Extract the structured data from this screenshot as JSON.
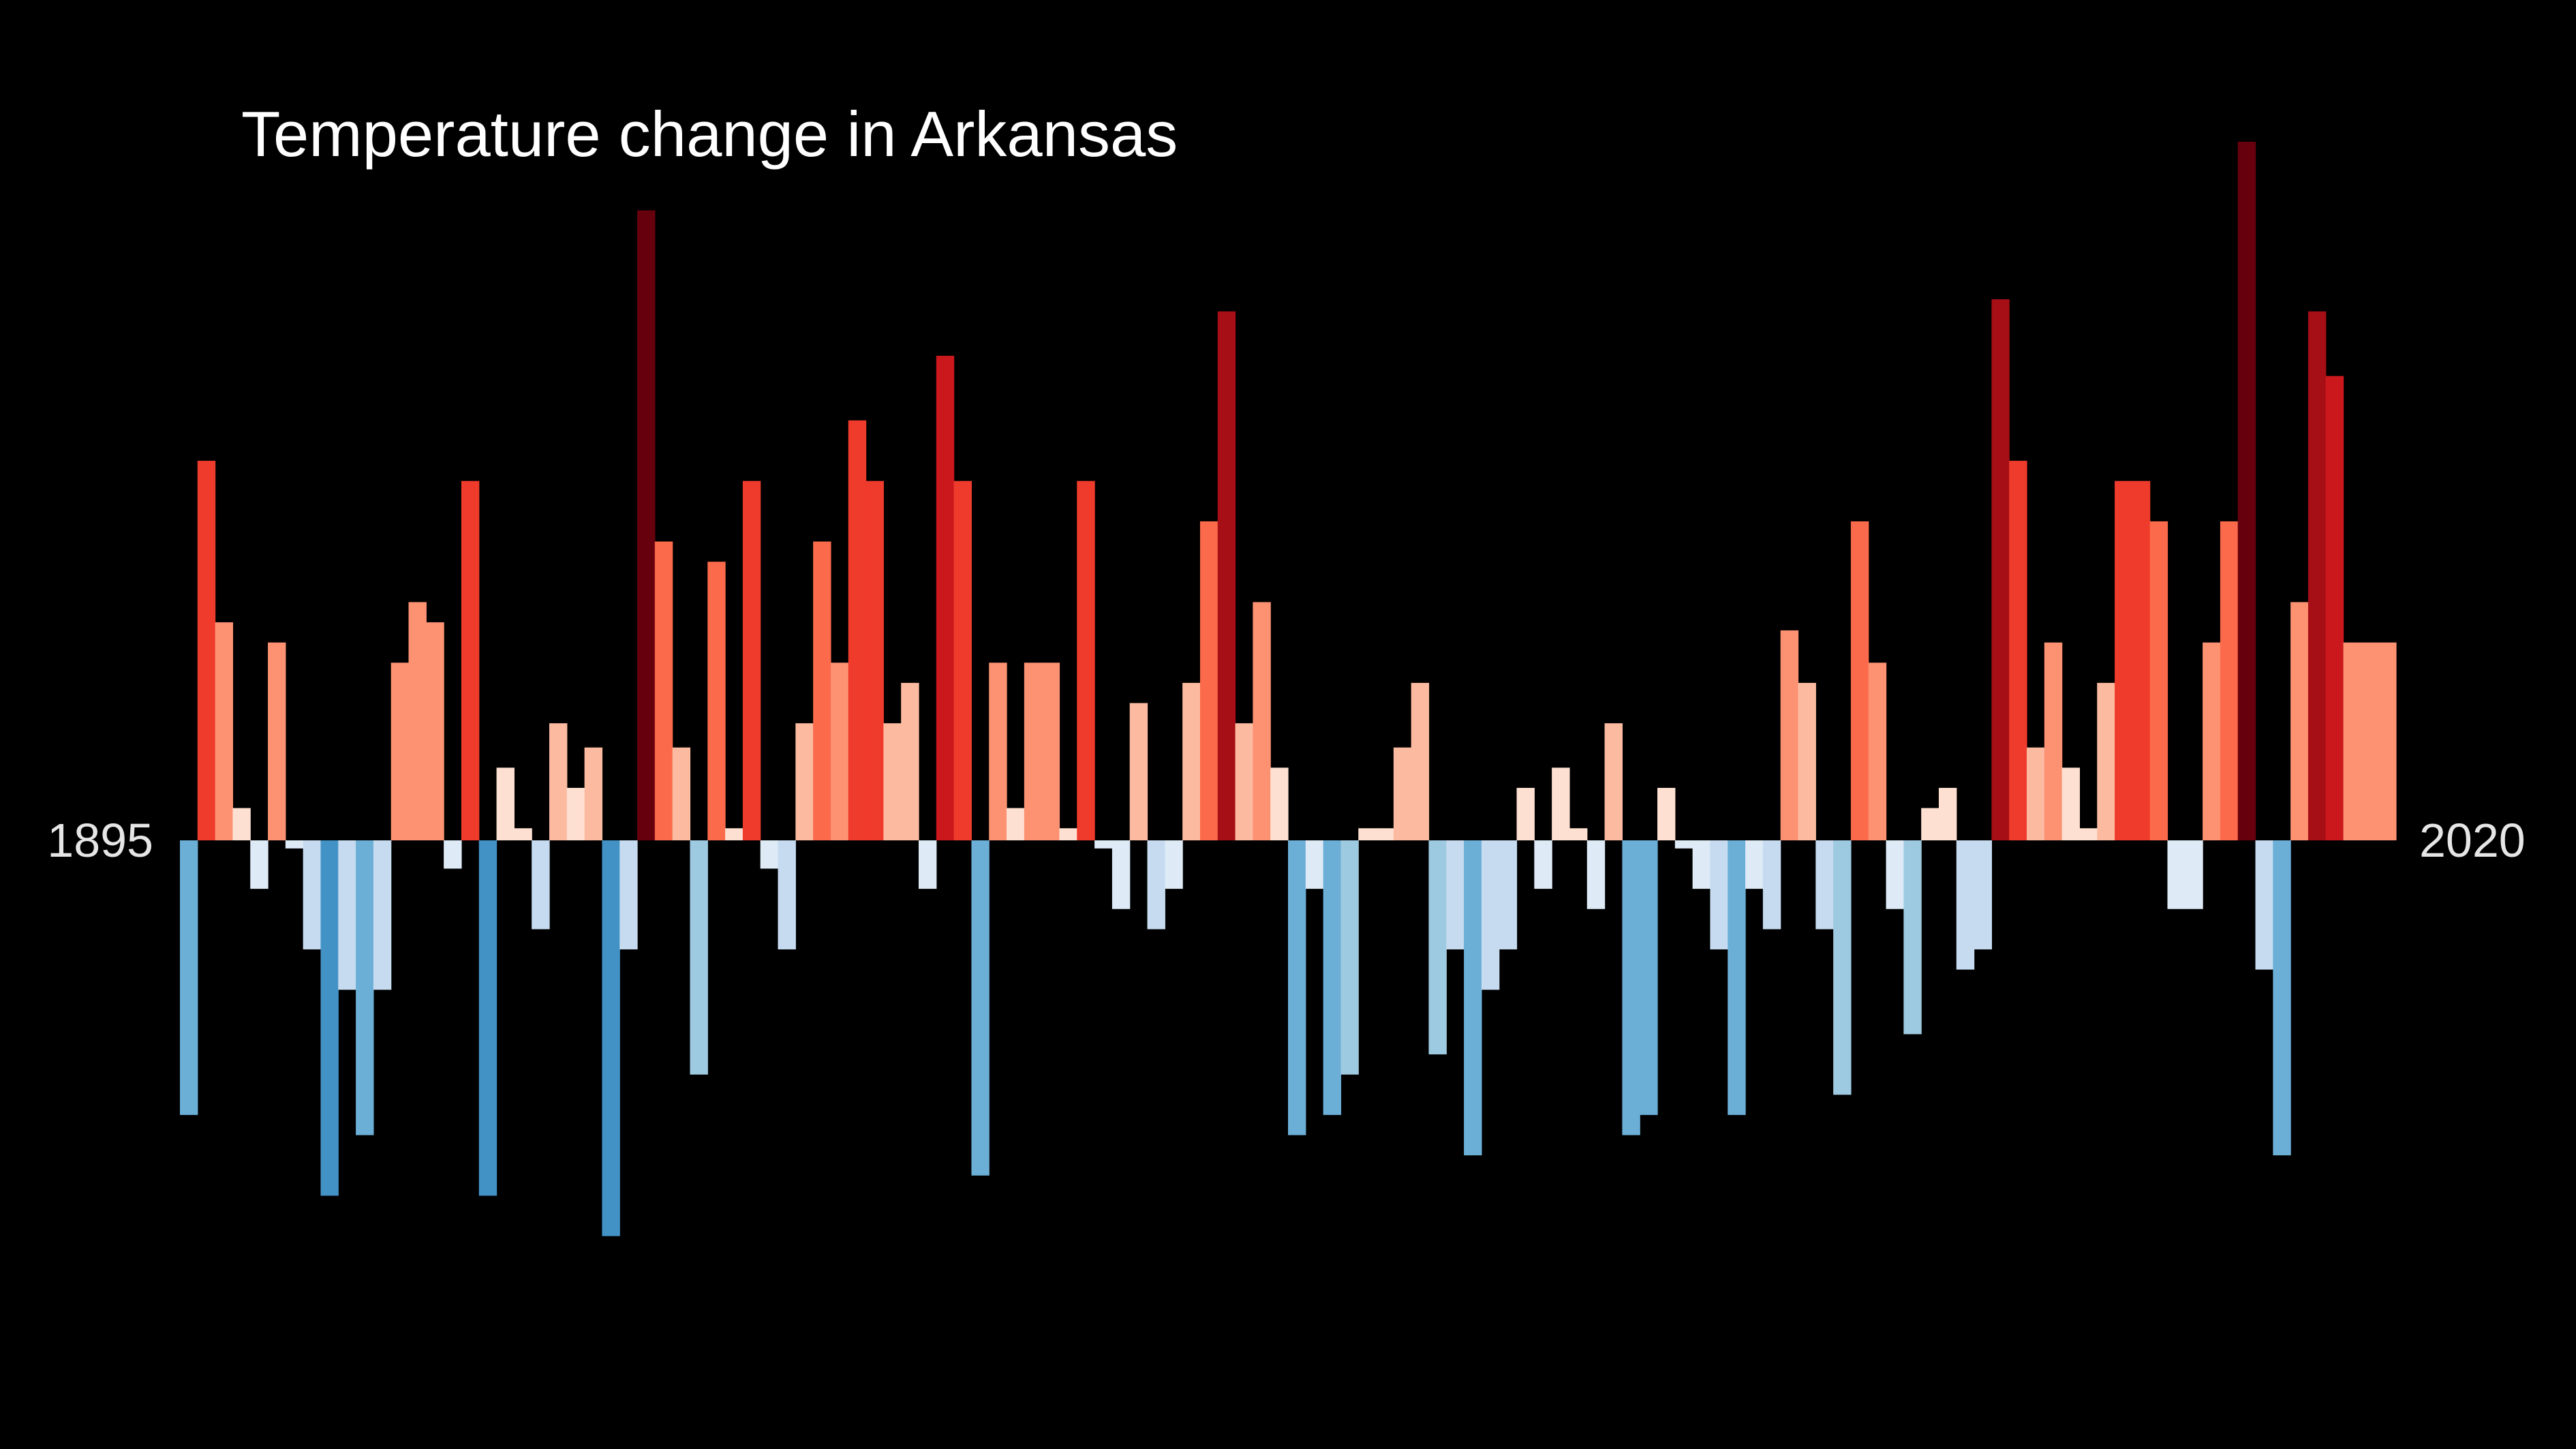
{
  "chart_data": {
    "type": "bar",
    "title": "Temperature change in Arkansas",
    "start_label": "1895",
    "end_label": "2020",
    "baseline": 0,
    "ylim": [
      -11.3,
      17.3
    ],
    "x": [
      1895,
      1896,
      1897,
      1898,
      1899,
      1900,
      1901,
      1902,
      1903,
      1904,
      1905,
      1906,
      1907,
      1908,
      1909,
      1910,
      1911,
      1912,
      1913,
      1914,
      1915,
      1916,
      1917,
      1918,
      1919,
      1920,
      1921,
      1922,
      1923,
      1924,
      1925,
      1926,
      1927,
      1928,
      1929,
      1930,
      1931,
      1932,
      1933,
      1934,
      1935,
      1936,
      1937,
      1938,
      1939,
      1940,
      1941,
      1942,
      1943,
      1944,
      1945,
      1946,
      1947,
      1948,
      1949,
      1950,
      1951,
      1952,
      1953,
      1954,
      1955,
      1956,
      1957,
      1958,
      1959,
      1960,
      1961,
      1962,
      1963,
      1964,
      1965,
      1966,
      1967,
      1968,
      1969,
      1970,
      1971,
      1972,
      1973,
      1974,
      1975,
      1976,
      1977,
      1978,
      1979,
      1980,
      1981,
      1982,
      1983,
      1984,
      1985,
      1986,
      1987,
      1988,
      1989,
      1990,
      1991,
      1992,
      1993,
      1994,
      1995,
      1996,
      1997,
      1998,
      1999,
      2000,
      2001,
      2002,
      2003,
      2004,
      2005,
      2006,
      2007,
      2008,
      2009,
      2010,
      2011,
      2012,
      2013,
      2014,
      2015,
      2016,
      2017,
      2018,
      2019,
      2020
    ],
    "values": [
      -6.8,
      9.4,
      5.4,
      0.8,
      -1.2,
      4.9,
      -0.2,
      -2.7,
      -8.8,
      -3.7,
      -7.3,
      -3.7,
      4.4,
      5.9,
      5.4,
      -0.7,
      8.9,
      -8.8,
      1.8,
      0.3,
      -2.2,
      2.9,
      1.3,
      2.3,
      -9.8,
      -2.7,
      15.6,
      7.4,
      2.3,
      -5.8,
      6.9,
      0.3,
      8.9,
      -0.7,
      -2.7,
      2.9,
      7.4,
      4.4,
      10.4,
      8.9,
      2.9,
      3.9,
      -1.2,
      12.0,
      8.9,
      -8.3,
      4.4,
      0.8,
      4.4,
      4.4,
      0.3,
      8.9,
      -0.2,
      -1.7,
      3.4,
      -2.2,
      -1.2,
      3.9,
      7.9,
      13.1,
      2.9,
      5.9,
      1.8,
      -7.3,
      -1.2,
      -6.8,
      -5.8,
      0.3,
      0.3,
      2.3,
      3.9,
      -5.3,
      -2.7,
      -7.8,
      -3.7,
      -2.7,
      1.3,
      -1.2,
      1.8,
      0.3,
      -1.7,
      2.9,
      -7.3,
      -6.8,
      1.3,
      -0.2,
      -1.2,
      -2.7,
      -6.8,
      -1.2,
      -2.2,
      5.2,
      3.9,
      -2.2,
      -6.3,
      7.9,
      4.4,
      -1.7,
      -4.8,
      0.8,
      1.3,
      -3.2,
      -2.7,
      13.4,
      9.4,
      2.3,
      4.9,
      1.8,
      0.3,
      3.9,
      8.9,
      8.9,
      7.9,
      -1.7,
      -1.7,
      4.9,
      7.9,
      17.3,
      -3.2,
      -7.8,
      5.9,
      13.1,
      11.5,
      4.9,
      4.9,
      4.9
    ]
  },
  "colors": {
    "background": "#000000",
    "title": "#ffffff",
    "axis_label": "#e6e6e6",
    "scale": [
      "#08306b",
      "#08519c",
      "#2171b5",
      "#4292c6",
      "#6baed6",
      "#9ecae1",
      "#c6dbef",
      "#deebf7",
      "#fee0d2",
      "#fcbba1",
      "#fc9272",
      "#fb6a4a",
      "#ef3b2c",
      "#cb181d",
      "#a50f15",
      "#67000d"
    ]
  }
}
